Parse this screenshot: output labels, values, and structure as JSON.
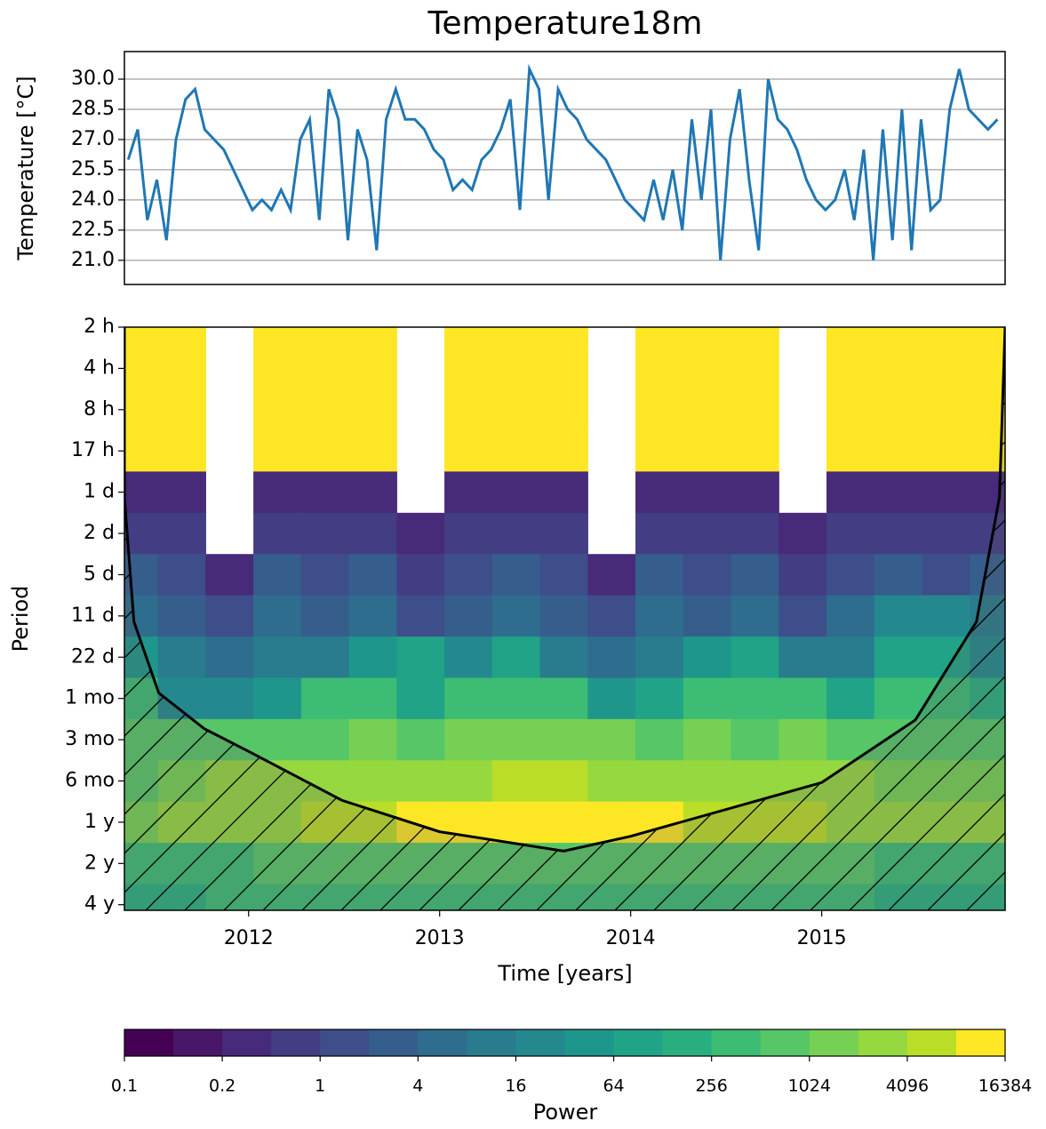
{
  "chart_data": [
    {
      "type": "line",
      "title": "Temperature18m",
      "ylabel": "Temperature [°C]",
      "color": "#1f77b4",
      "grid": true,
      "xlim": [
        2011.35,
        2015.96
      ],
      "ylim": [
        19.8,
        31.37
      ],
      "yticks": [
        {
          "value": 21,
          "label": "21.0"
        },
        22.5,
        {
          "value": 24,
          "label": "24.0"
        },
        25.5,
        {
          "value": 27,
          "label": "27.0"
        },
        28.5,
        {
          "value": 30,
          "label": "30.0"
        }
      ],
      "x": [
        2011.37,
        2011.42,
        2011.47,
        2011.52,
        2011.57,
        2011.62,
        2011.67,
        2011.72,
        2011.77,
        2011.82,
        2011.87,
        2011.92,
        2011.97,
        2012.02,
        2012.07,
        2012.12,
        2012.17,
        2012.22,
        2012.27,
        2012.32,
        2012.37,
        2012.42,
        2012.47,
        2012.52,
        2012.57,
        2012.62,
        2012.67,
        2012.72,
        2012.77,
        2012.82,
        2012.87,
        2012.92,
        2012.97,
        2013.02,
        2013.07,
        2013.12,
        2013.17,
        2013.22,
        2013.27,
        2013.32,
        2013.37,
        2013.42,
        2013.47,
        2013.52,
        2013.57,
        2013.62,
        2013.67,
        2013.72,
        2013.77,
        2013.82,
        2013.87,
        2013.92,
        2013.97,
        2014.02,
        2014.07,
        2014.12,
        2014.17,
        2014.22,
        2014.27,
        2014.32,
        2014.37,
        2014.42,
        2014.47,
        2014.52,
        2014.57,
        2014.62,
        2014.67,
        2014.72,
        2014.77,
        2014.82,
        2014.87,
        2014.92,
        2014.97,
        2015.02,
        2015.07,
        2015.12,
        2015.17,
        2015.22,
        2015.27,
        2015.32,
        2015.37,
        2015.42,
        2015.47,
        2015.52,
        2015.57,
        2015.62,
        2015.67,
        2015.72,
        2015.77,
        2015.82,
        2015.87,
        2015.92
      ],
      "values": [
        26,
        27.5,
        23,
        25,
        22,
        27,
        29,
        29.5,
        27.5,
        27,
        26.5,
        25.5,
        24.5,
        23.5,
        24,
        23.5,
        24.5,
        23.5,
        27,
        28,
        23,
        29.5,
        28,
        22,
        27.5,
        26,
        21.5,
        28,
        29.5,
        28,
        28,
        27.5,
        26.5,
        26,
        24.5,
        25,
        24.5,
        26,
        26.5,
        27.5,
        29,
        23.5,
        30.5,
        29.5,
        24,
        29.5,
        28.5,
        28,
        27,
        26.5,
        26,
        25,
        24,
        23.5,
        23,
        25,
        23,
        25.5,
        22.5,
        28,
        24,
        28.5,
        21,
        27,
        29.5,
        25,
        21.5,
        30,
        28,
        27.5,
        26.5,
        25,
        24,
        23.5,
        24,
        25.5,
        23,
        26.5,
        21,
        27.5,
        22,
        28.5,
        21.5,
        28,
        23.5,
        24,
        28.5,
        30.5,
        28.5,
        28,
        27.5,
        28
      ]
    },
    {
      "type": "heatmap",
      "xlabel": "Time [years]",
      "ylabel": "Period",
      "log_base": 2,
      "y_inverted": true,
      "xlim": [
        2011.35,
        2015.96
      ],
      "ylim": [
        2,
        36000
      ],
      "xticks": [
        2012,
        2013,
        2014,
        2015
      ],
      "yticks": [
        {
          "value": 2,
          "label": "2 h"
        },
        {
          "value": 4,
          "label": "4 h"
        },
        {
          "value": 8,
          "label": "8 h"
        },
        {
          "value": 16,
          "label": "17 h"
        },
        {
          "value": 32,
          "label": "1 d"
        },
        {
          "value": 64,
          "label": "2 d"
        },
        {
          "value": 128,
          "label": "5 d"
        },
        {
          "value": 256,
          "label": "11 d"
        },
        {
          "value": 512,
          "label": "22 d"
        },
        {
          "value": 1024,
          "label": "1 mo"
        },
        {
          "value": 2048,
          "label": "3 mo"
        },
        {
          "value": 4096,
          "label": "6 mo"
        },
        {
          "value": 8192,
          "label": "1 y"
        },
        {
          "value": 16384,
          "label": "2 y"
        },
        {
          "value": 32768,
          "label": "4 y"
        }
      ],
      "x": [
        2011.4,
        2011.65,
        2011.9,
        2012.15,
        2012.4,
        2012.65,
        2012.9,
        2013.15,
        2013.4,
        2013.65,
        2013.9,
        2014.15,
        2014.4,
        2014.65,
        2014.9,
        2015.15,
        2015.4,
        2015.65,
        2015.9
      ],
      "y": [
        2,
        4,
        8,
        16,
        32,
        64,
        128,
        256,
        512,
        1024,
        2048,
        4096,
        8192,
        16384,
        32768
      ],
      "z": [
        [
          12000,
          12000,
          null,
          12000,
          12000,
          12000,
          null,
          12000,
          12000,
          12000,
          null,
          12000,
          12000,
          12000,
          null,
          12000,
          12000,
          12000,
          12000
        ],
        [
          12000,
          12000,
          null,
          12000,
          12000,
          12000,
          null,
          12000,
          12000,
          12000,
          null,
          12000,
          12000,
          12000,
          null,
          12000,
          12000,
          12000,
          12000
        ],
        [
          12000,
          12000,
          null,
          12000,
          12000,
          12000,
          null,
          12000,
          12000,
          12000,
          null,
          12000,
          12000,
          12000,
          null,
          12000,
          12000,
          12000,
          12000
        ],
        [
          12000,
          12000,
          null,
          12000,
          12000,
          12000,
          null,
          12000,
          12000,
          12000,
          null,
          12000,
          12000,
          12000,
          null,
          12000,
          12000,
          12000,
          12000
        ],
        [
          0.3,
          0.3,
          null,
          0.3,
          0.4,
          0.3,
          null,
          0.3,
          0.3,
          0.3,
          null,
          0.3,
          0.4,
          0.3,
          null,
          0.3,
          0.3,
          0.3,
          0.3
        ],
        [
          0.5,
          0.5,
          null,
          0.6,
          0.5,
          0.5,
          0.3,
          0.5,
          0.6,
          0.5,
          null,
          0.5,
          0.6,
          0.5,
          0.3,
          0.5,
          0.6,
          0.5,
          0.5
        ],
        [
          2,
          1.5,
          0.3,
          2,
          1.5,
          2,
          0.5,
          1.5,
          2,
          1.5,
          0.3,
          2,
          1.5,
          2,
          0.5,
          1.5,
          2,
          1.5,
          2
        ],
        [
          6,
          3,
          1,
          4,
          3,
          4,
          1,
          3,
          4,
          3,
          1,
          4,
          3,
          4,
          1,
          4,
          20,
          30,
          8
        ],
        [
          40,
          8,
          4,
          8,
          8,
          60,
          64,
          16,
          64,
          8,
          4,
          8,
          40,
          64,
          8,
          8,
          64,
          64,
          16
        ],
        [
          300,
          30,
          16,
          60,
          300,
          400,
          64,
          300,
          300,
          300,
          40,
          64,
          300,
          400,
          300,
          64,
          300,
          300,
          200
        ],
        [
          600,
          700,
          800,
          700,
          1000,
          1200,
          1000,
          1200,
          1500,
          1500,
          1200,
          1000,
          1200,
          1000,
          1200,
          1000,
          800,
          900,
          700
        ],
        [
          1000,
          2000,
          2500,
          3000,
          3500,
          4000,
          4000,
          4000,
          5000,
          5000,
          4000,
          4000,
          3500,
          3500,
          3000,
          2500,
          2000,
          2000,
          1500
        ],
        [
          1500,
          2500,
          3000,
          4000,
          6000,
          8000,
          10000,
          12000,
          14000,
          14000,
          12000,
          10000,
          8000,
          6000,
          5000,
          4000,
          3000,
          3000,
          2500
        ],
        [
          256,
          300,
          400,
          512,
          512,
          600,
          600,
          700,
          800,
          800,
          700,
          700,
          600,
          600,
          512,
          512,
          400,
          400,
          300
        ],
        [
          200,
          200,
          256,
          256,
          256,
          300,
          300,
          300,
          300,
          300,
          300,
          300,
          256,
          256,
          256,
          256,
          200,
          200,
          200
        ]
      ],
      "coi": {
        "x": [
          2011.35,
          2011.35,
          2011.4,
          2011.53,
          2011.77,
          2012,
          2012.49,
          2013,
          2013.65,
          2014,
          2015,
          2015.49,
          2015.81,
          2015.93,
          2015.96
        ],
        "values": [
          2,
          35,
          282,
          935,
          1710,
          2490,
          5680,
          9610,
          13300,
          10370,
          4210,
          1470,
          282,
          35,
          2
        ]
      },
      "colorbar": {
        "label": "Power",
        "ticks": [
          0.1,
          0.2,
          1,
          4,
          16,
          64,
          256,
          1024,
          4096,
          16384
        ],
        "colors": [
          "#440154",
          "#481769",
          "#472a7a",
          "#433d84",
          "#3d4e8a",
          "#355e8d",
          "#2e6d8e",
          "#297b8e",
          "#23898e",
          "#1f968b",
          "#20a386",
          "#29af7f",
          "#3dbc74",
          "#56c667",
          "#75d054",
          "#95d840",
          "#bade28",
          "#fde725"
        ]
      }
    }
  ]
}
